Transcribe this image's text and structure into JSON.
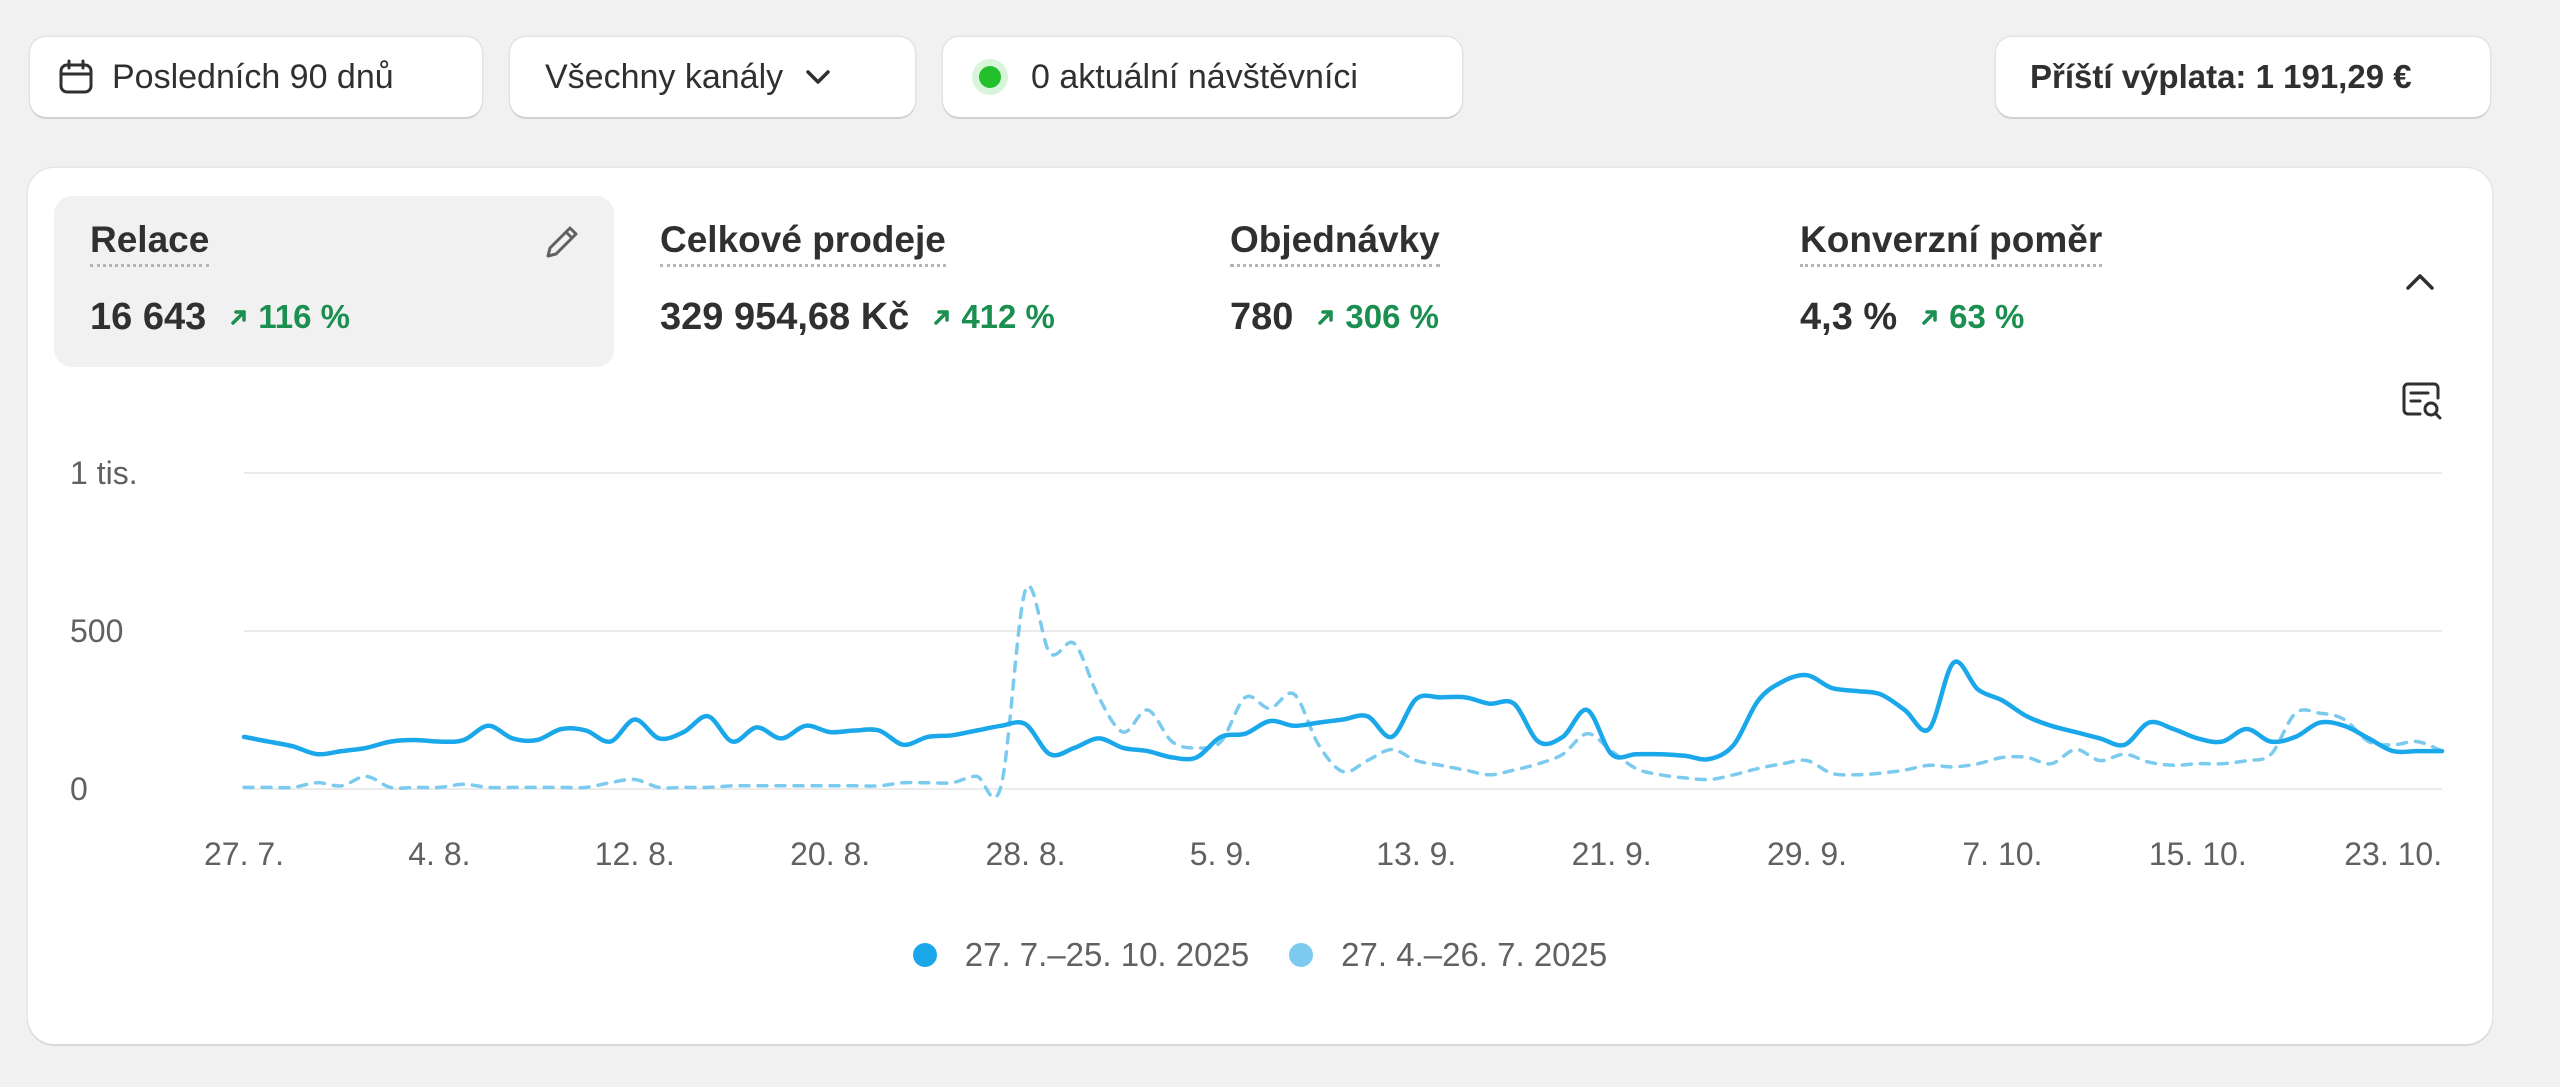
{
  "filters": {
    "date_range": {
      "label": "Posledních 90 dnů",
      "icon": "calendar-icon"
    },
    "channels": {
      "label": "Všechny kanály",
      "icon": "chevron-down-icon"
    },
    "visitors": {
      "label": "0 aktuální návštěvníci",
      "status_color": "#22c12b"
    },
    "payout": {
      "label": "Příští výplata: 1 191,29 €"
    }
  },
  "metrics": [
    {
      "label": "Relace",
      "value": "16 643",
      "change": "116 %",
      "active": true
    },
    {
      "label": "Celkové prodeje",
      "value": "329 954,68 Kč",
      "change": "412 %",
      "active": false
    },
    {
      "label": "Objednávky",
      "value": "780",
      "change": "306 %",
      "active": false
    },
    {
      "label": "Konverzní poměr",
      "value": "4,3 %",
      "change": "63 %",
      "active": false
    }
  ],
  "colors": {
    "positive": "#1a8f4f",
    "current_series": "#1aa8eb",
    "previous_series": "#7ccbef"
  },
  "chart_data": {
    "type": "line",
    "xlabel": "",
    "ylabel": "",
    "ylim": [
      0,
      1000
    ],
    "y_ticks": [
      {
        "value": 0,
        "label": "0"
      },
      {
        "value": 500,
        "label": "500"
      },
      {
        "value": 1000,
        "label": "1 tis."
      }
    ],
    "x_tick_labels": [
      "27. 7.",
      "4. 8.",
      "12. 8.",
      "20. 8.",
      "28. 8.",
      "5. 9.",
      "13. 9.",
      "21. 9.",
      "29. 9.",
      "7. 10.",
      "15. 10.",
      "23. 10."
    ],
    "x_tick_days": [
      0,
      8,
      16,
      24,
      32,
      40,
      48,
      56,
      64,
      72,
      80,
      88
    ],
    "x_range": [
      0,
      90
    ],
    "grid": true,
    "legend_position": "bottom-center",
    "series": [
      {
        "name": "27. 7.–25. 10. 2025",
        "style": "solid",
        "values": [
          165,
          150,
          135,
          110,
          120,
          130,
          150,
          155,
          150,
          155,
          200,
          160,
          155,
          190,
          185,
          150,
          220,
          160,
          180,
          230,
          150,
          195,
          160,
          200,
          180,
          185,
          185,
          140,
          165,
          170,
          185,
          200,
          205,
          110,
          130,
          160,
          130,
          120,
          100,
          100,
          165,
          175,
          215,
          200,
          210,
          220,
          230,
          165,
          285,
          290,
          290,
          270,
          270,
          150,
          165,
          250,
          110,
          110,
          110,
          105,
          95,
          140,
          280,
          340,
          360,
          320,
          310,
          300,
          250,
          190,
          400,
          315,
          280,
          230,
          200,
          180,
          160,
          140,
          210,
          190,
          160,
          150,
          190,
          150,
          165,
          210,
          200,
          160,
          120,
          120,
          120
        ]
      },
      {
        "name": "27. 4.–26. 7. 2025",
        "style": "dashed",
        "values": [
          5,
          5,
          5,
          20,
          10,
          40,
          5,
          5,
          5,
          15,
          5,
          5,
          5,
          5,
          5,
          20,
          30,
          5,
          5,
          5,
          10,
          10,
          10,
          10,
          10,
          10,
          10,
          20,
          20,
          20,
          40,
          10,
          630,
          430,
          460,
          290,
          180,
          250,
          150,
          130,
          150,
          290,
          255,
          300,
          140,
          55,
          90,
          125,
          90,
          75,
          60,
          45,
          60,
          80,
          110,
          175,
          120,
          65,
          45,
          35,
          30,
          45,
          65,
          80,
          90,
          50,
          45,
          50,
          60,
          75,
          70,
          80,
          100,
          100,
          80,
          125,
          90,
          110,
          85,
          75,
          80,
          80,
          90,
          110,
          240,
          240,
          220,
          150,
          140,
          150,
          120
        ]
      }
    ]
  }
}
